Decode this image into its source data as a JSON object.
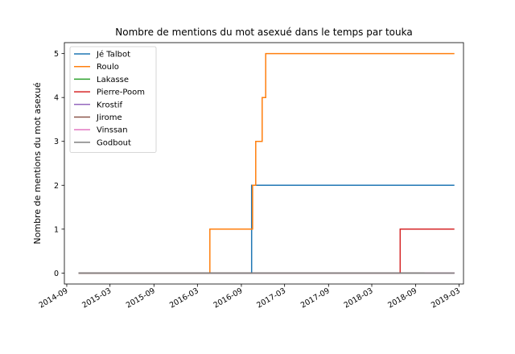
{
  "chart_data": {
    "type": "line",
    "title": "Nombre de mentions du mot asexué dans le temps par touka",
    "xlabel": "",
    "ylabel": "Nombre de mentions du mot asexué",
    "x_tick_labels": [
      "2014-09",
      "2015-03",
      "2015-09",
      "2016-03",
      "2016-09",
      "2017-03",
      "2017-09",
      "2018-03",
      "2018-09",
      "2019-03"
    ],
    "y_ticks": [
      0,
      1,
      2,
      3,
      4,
      5
    ],
    "ylim": [
      -0.25,
      5.25
    ],
    "xlim": [
      "2014-08-22",
      "2019-03-20"
    ],
    "grid": false,
    "legend_position": "top-left",
    "step": true,
    "series": [
      {
        "name": "Jé Talbot",
        "color": "#1f77b4",
        "points": [
          [
            "2014-10-20",
            0
          ],
          [
            "2016-10-14",
            0
          ],
          [
            "2016-10-14",
            2
          ],
          [
            "2019-02-10",
            2
          ]
        ]
      },
      {
        "name": "Roulo",
        "color": "#ff7f0e",
        "points": [
          [
            "2014-10-20",
            0
          ],
          [
            "2016-04-22",
            0
          ],
          [
            "2016-04-22",
            1
          ],
          [
            "2016-10-18",
            1
          ],
          [
            "2016-10-18",
            2
          ],
          [
            "2016-10-31",
            2
          ],
          [
            "2016-10-31",
            3
          ],
          [
            "2016-11-27",
            3
          ],
          [
            "2016-11-27",
            4
          ],
          [
            "2016-12-12",
            4
          ],
          [
            "2016-12-12",
            5
          ],
          [
            "2019-02-10",
            5
          ]
        ]
      },
      {
        "name": "Lakasse",
        "color": "#2ca02c",
        "points": [
          [
            "2014-10-20",
            0
          ],
          [
            "2019-02-10",
            0
          ]
        ]
      },
      {
        "name": "Pierre-Poom",
        "color": "#d62728",
        "points": [
          [
            "2014-10-20",
            0
          ],
          [
            "2018-06-28",
            0
          ],
          [
            "2018-06-28",
            1
          ],
          [
            "2019-02-10",
            1
          ]
        ]
      },
      {
        "name": "Krostif",
        "color": "#9467bd",
        "points": [
          [
            "2014-10-20",
            0
          ],
          [
            "2019-02-10",
            0
          ]
        ]
      },
      {
        "name": "Jirome",
        "color": "#8c564b",
        "points": [
          [
            "2014-10-20",
            0
          ],
          [
            "2019-02-10",
            0
          ]
        ]
      },
      {
        "name": "Vinssan",
        "color": "#e377c2",
        "points": [
          [
            "2018-10-08",
            0
          ],
          [
            "2019-02-10",
            0
          ]
        ]
      },
      {
        "name": "Godbout",
        "color": "#7f7f7f",
        "points": [
          [
            "2014-10-20",
            0
          ],
          [
            "2019-02-10",
            0
          ]
        ]
      }
    ]
  }
}
